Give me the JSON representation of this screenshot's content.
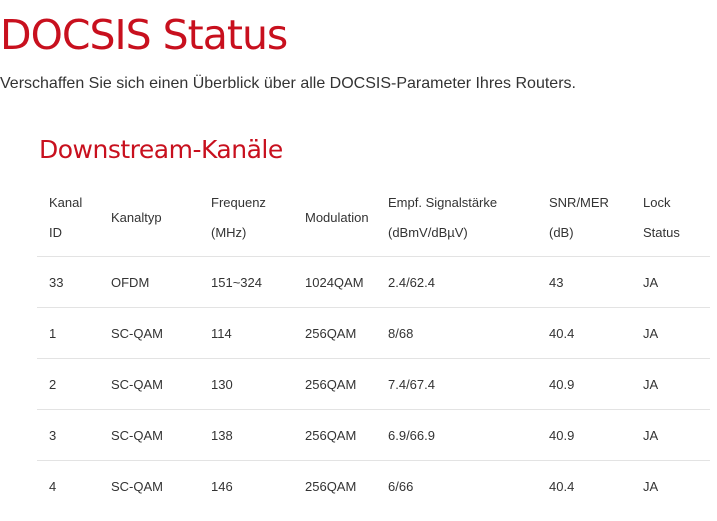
{
  "page": {
    "title": "DOCSIS Status",
    "subtitle": "Verschaffen Sie sich einen Überblick über alle DOCSIS-Parameter Ihres Routers."
  },
  "downstream": {
    "heading": "Downstream-Kanäle",
    "columns": [
      {
        "line1": "Kanal",
        "line2": "ID"
      },
      {
        "line1": "Kanaltyp",
        "line2": ""
      },
      {
        "line1": "Frequenz",
        "line2": "(MHz)"
      },
      {
        "line1": "Modulation",
        "line2": ""
      },
      {
        "line1": "Empf. Signalstärke",
        "line2": "(dBmV/dBµV)"
      },
      {
        "line1": "SNR/MER",
        "line2": "(dB)"
      },
      {
        "line1": "Lock",
        "line2": "Status"
      }
    ],
    "rows": [
      [
        "33",
        "OFDM",
        "151~324",
        "1024QAM",
        "2.4/62.4",
        "43",
        "JA"
      ],
      [
        "1",
        "SC-QAM",
        "114",
        "256QAM",
        "8/68",
        "40.4",
        "JA"
      ],
      [
        "2",
        "SC-QAM",
        "130",
        "256QAM",
        "7.4/67.4",
        "40.9",
        "JA"
      ],
      [
        "3",
        "SC-QAM",
        "138",
        "256QAM",
        "6.9/66.9",
        "40.9",
        "JA"
      ],
      [
        "4",
        "SC-QAM",
        "146",
        "256QAM",
        "6/66",
        "40.4",
        "JA"
      ]
    ]
  },
  "colors": {
    "accent": "#c8101e",
    "text": "#333333",
    "divider": "#e3e3e3"
  }
}
